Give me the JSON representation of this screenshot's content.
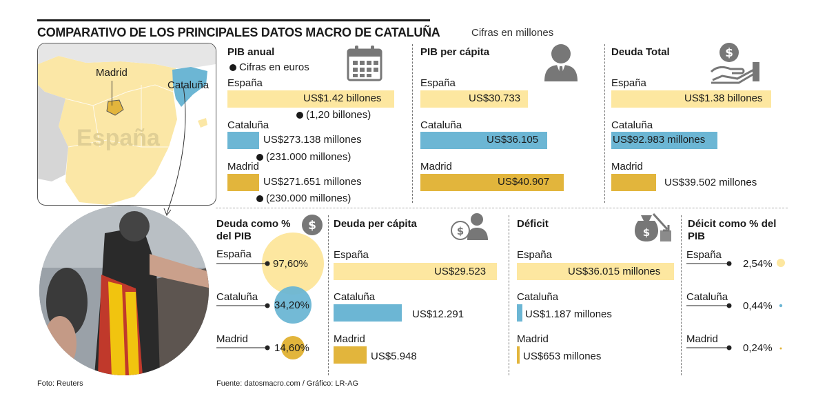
{
  "header": {
    "title": "COMPARATIVO DE LOS PRINCIPALES DATOS MACRO DE CATALUÑA",
    "subtitle": "Cifras en millones"
  },
  "map": {
    "label_madrid": "Madrid",
    "label_cataluna": "Cataluña",
    "label_espana": "España"
  },
  "footer": {
    "photo_credit": "Foto: Reuters",
    "source": "Fuente: datosmacro.com / Gráfico: LR-AG"
  },
  "colors": {
    "espana": "#fde7a0",
    "cataluna": "#6cb6d4",
    "madrid": "#e2b53c"
  },
  "chart_data": [
    {
      "type": "bar",
      "title": "PIB anual",
      "note": "Cifras en euros",
      "categories": [
        "España",
        "Cataluña",
        "Madrid"
      ],
      "values": [
        1420000,
        273138,
        271651
      ],
      "unit": "US$ millones",
      "labels": [
        "US$1.42 billones",
        "US$273.138 millones",
        "US$271.651 millones"
      ],
      "euro_labels": [
        "(1,20 billones)",
        "(231.000 millones)",
        "(230.000 millones)"
      ]
    },
    {
      "type": "bar",
      "title": "PIB per cápita",
      "categories": [
        "España",
        "Cataluña",
        "Madrid"
      ],
      "values": [
        30733,
        36105,
        40907
      ],
      "labels": [
        "US$30.733",
        "US$36.105",
        "US$40.907"
      ]
    },
    {
      "type": "bar",
      "title": "Deuda Total",
      "categories": [
        "España",
        "Cataluña",
        "Madrid"
      ],
      "values": [
        1380000,
        92983,
        39502
      ],
      "unit": "US$ millones",
      "labels": [
        "US$1.38 billones",
        "US$92.983 millones",
        "US$39.502 millones"
      ]
    },
    {
      "type": "bubble",
      "title": "Deuda como % del PIB",
      "categories": [
        "España",
        "Cataluña",
        "Madrid"
      ],
      "values": [
        97.6,
        34.2,
        14.6
      ],
      "labels": [
        "97,60%",
        "34,20%",
        "14,60%"
      ]
    },
    {
      "type": "bar",
      "title": "Deuda per cápita",
      "categories": [
        "España",
        "Cataluña",
        "Madrid"
      ],
      "values": [
        29523,
        12291,
        5948
      ],
      "labels": [
        "US$29.523",
        "US$12.291",
        "US$5.948"
      ]
    },
    {
      "type": "bar",
      "title": "Déficit",
      "categories": [
        "España",
        "Cataluña",
        "Madrid"
      ],
      "values": [
        36015,
        1187,
        653
      ],
      "unit": "US$ millones",
      "labels": [
        "US$36.015 millones",
        "US$1.187 millones",
        "US$653 millones"
      ]
    },
    {
      "type": "bubble",
      "title": "Déicit como % del PIB",
      "categories": [
        "España",
        "Cataluña",
        "Madrid"
      ],
      "values": [
        2.54,
        0.44,
        0.24
      ],
      "labels": [
        "2,54%",
        "0,44%",
        "0,24%"
      ]
    }
  ]
}
